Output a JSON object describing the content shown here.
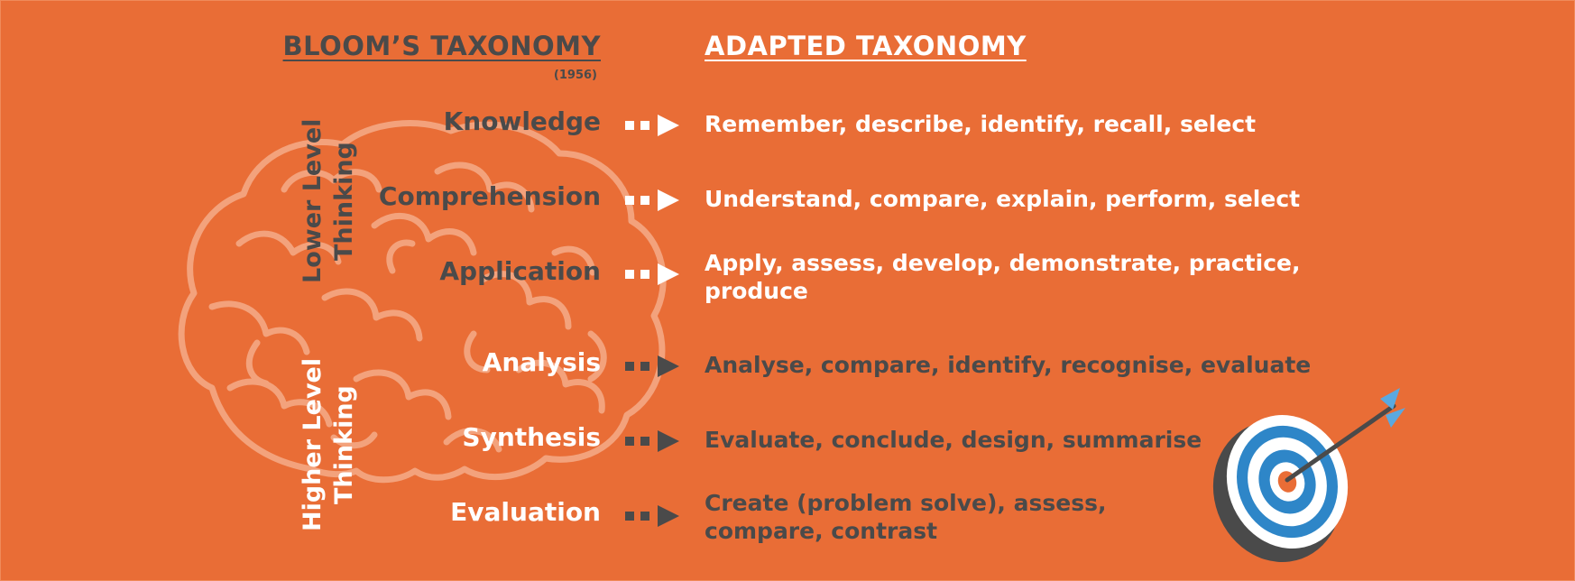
{
  "headings": {
    "bloom": "BLOOM’S TAXONOMY",
    "bloom_year": "(1956)",
    "adapted": "ADAPTED TAXONOMY"
  },
  "groups": {
    "lower": "Lower Level Thinking",
    "higher": "Higher Level Thinking"
  },
  "rows": [
    {
      "level": "Knowledge",
      "verbs": [
        "Remember, describe, identify, recall, select"
      ]
    },
    {
      "level": "Comprehension",
      "verbs": [
        "Understand, compare, explain, perform, select"
      ]
    },
    {
      "level": "Application",
      "verbs": [
        "Apply, assess, develop, demonstrate, practice,",
        "produce"
      ]
    },
    {
      "level": "Analysis",
      "verbs": [
        "Analyse, compare, identify, recognise, evaluate"
      ]
    },
    {
      "level": "Synthesis",
      "verbs": [
        "Evaluate, conclude, design, summarise"
      ]
    },
    {
      "level": "Evaluation",
      "verbs": [
        "Create (problem solve), assess,",
        "compare,  contrast"
      ]
    }
  ],
  "colors": {
    "background": "#E96D36",
    "dark_text": "#4a4a4a",
    "light_text": "#ffffff",
    "brain_outline": "#F3A27C",
    "target_blue": "#2E86C8",
    "target_dark": "#4a4a4a"
  },
  "icons": [
    "brain-illustration",
    "target-with-arrow-icon",
    "arrow-right-icon"
  ]
}
